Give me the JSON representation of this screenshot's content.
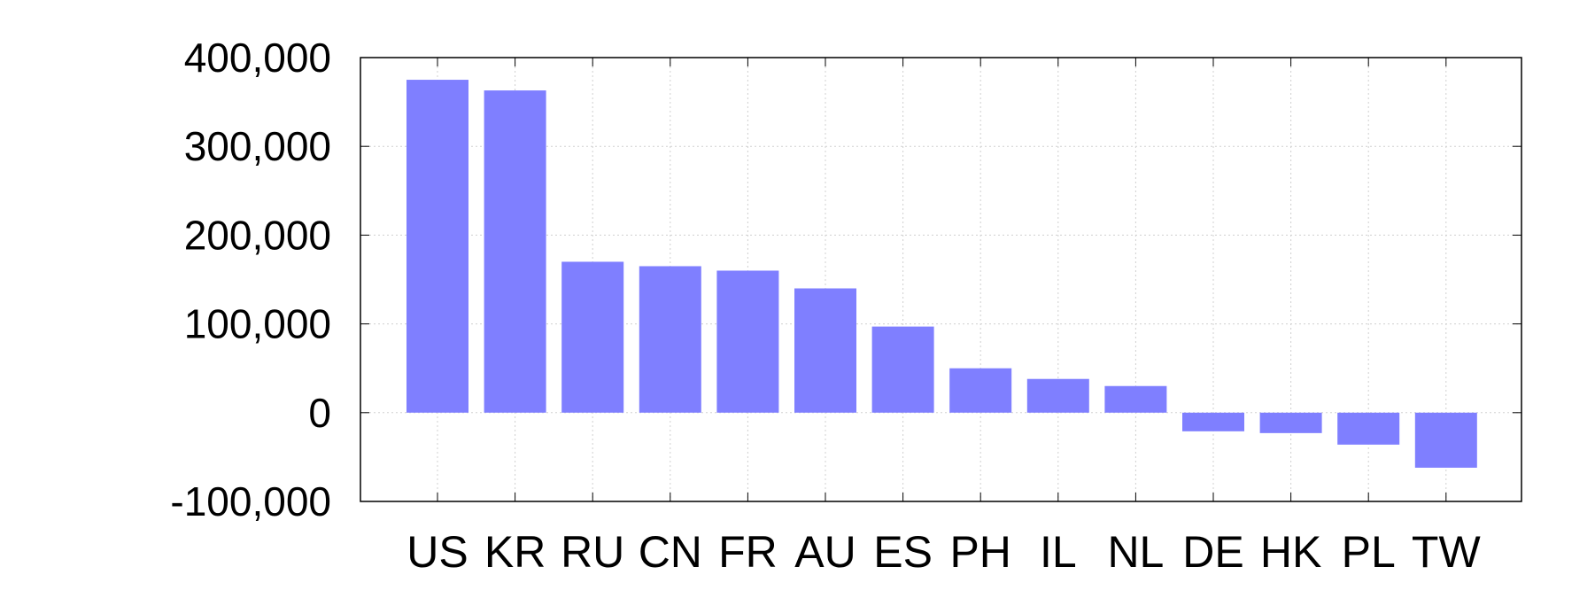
{
  "chart_data": {
    "type": "bar",
    "title": "",
    "xlabel": "",
    "ylabel": "",
    "categories": [
      "US",
      "KR",
      "RU",
      "CN",
      "FR",
      "AU",
      "ES",
      "PH",
      "IL",
      "NL",
      "DE",
      "HK",
      "PL",
      "TW"
    ],
    "values": [
      375000,
      363000,
      170000,
      165000,
      160000,
      140000,
      97000,
      50000,
      38000,
      30000,
      -21000,
      -23000,
      -36000,
      -62000
    ],
    "ylim": [
      -100000,
      400000
    ],
    "yticks": [
      400000,
      300000,
      200000,
      100000,
      0,
      -100000
    ],
    "ytick_labels": [
      "400,000",
      "300,000",
      "200,000",
      "100,000",
      "0",
      "-100,000"
    ],
    "grid": true,
    "bar_color": "#7f7fff"
  }
}
